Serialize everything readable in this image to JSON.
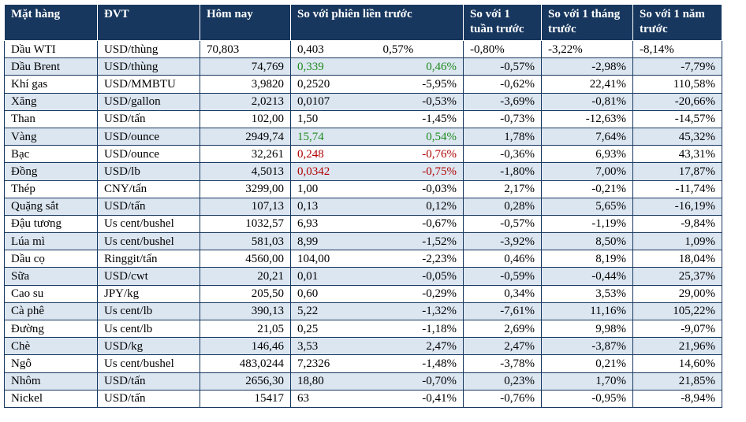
{
  "table": {
    "header": [
      "Mặt hàng",
      "ĐVT",
      "Hôm nay",
      "So với phiên liền trước",
      "So với 1 tuần trước",
      "So với 1 tháng trước",
      "So với 1 năm trước"
    ],
    "rows": [
      {
        "cells": [
          "Dầu WTI",
          "USD/thùng",
          "70,803",
          "0,403",
          "0,57%",
          "-0,80%",
          "-3,22%",
          "-8,14%"
        ]
      },
      {
        "cells": [
          "Dầu Brent",
          "USD/thùng",
          "74,769",
          "0,339",
          "0,46%",
          "-0,57%",
          "-2,98%",
          "-7,79%"
        ],
        "change_color": "#1e8a1e"
      },
      {
        "cells": [
          "Khí gas",
          "USD/MMBTU",
          "3,9820",
          "0,2520",
          "-5,95%",
          "-0,62%",
          "22,41%",
          "110,58%"
        ]
      },
      {
        "cells": [
          "Xăng",
          "USD/gallon",
          "2,0213",
          "0,0107",
          "-0,53%",
          "-3,69%",
          "-0,81%",
          "-20,66%"
        ]
      },
      {
        "cells": [
          "Than",
          "USD/tấn",
          "102,00",
          "1,50",
          "-1,45%",
          "-0,73%",
          "-12,63%",
          "-14,57%"
        ]
      },
      {
        "cells": [
          "Vàng",
          "USD/ounce",
          "2949,74",
          "15,74",
          "0,54%",
          "1,78%",
          "7,64%",
          "45,32%"
        ],
        "change_color": "#1e8a1e"
      },
      {
        "cells": [
          "Bạc",
          "USD/ounce",
          "32,261",
          "0,248",
          "-0,76%",
          "-0,36%",
          "6,93%",
          "43,31%"
        ],
        "change_color": "#b00000"
      },
      {
        "cells": [
          "Đồng",
          "USD/lb",
          "4,5013",
          "0,0342",
          "-0,75%",
          "-1,80%",
          "7,00%",
          "17,87%"
        ],
        "change_color": "#b00000"
      },
      {
        "cells": [
          "Thép",
          "CNY/tấn",
          "3299,00",
          "1,00",
          "-0,03%",
          "2,17%",
          "-0,21%",
          "-11,74%"
        ]
      },
      {
        "cells": [
          "Quặng sắt",
          "USD/tấn",
          "107,13",
          "0,13",
          "0,12%",
          "0,28%",
          "5,65%",
          "-16,19%"
        ]
      },
      {
        "cells": [
          "Đậu tương",
          "Us cent/bushel",
          "1032,57",
          "6,93",
          "-0,67%",
          "-0,57%",
          "-1,19%",
          "-9,84%"
        ]
      },
      {
        "cells": [
          "Lúa mì",
          "Us cent/bushel",
          "581,03",
          "8,99",
          "-1,52%",
          "-3,92%",
          "8,50%",
          "1,09%"
        ]
      },
      {
        "cells": [
          "Dầu cọ",
          "Ringgit/tấn",
          "4560,00",
          "104,00",
          "-2,23%",
          "0,46%",
          "8,19%",
          "18,04%"
        ]
      },
      {
        "cells": [
          "Sữa",
          "USD/cwt",
          "20,21",
          "0,01",
          "-0,05%",
          "-0,59%",
          "-0,44%",
          "25,37%"
        ]
      },
      {
        "cells": [
          "Cao su",
          "JPY/kg",
          "205,50",
          "0,60",
          "-0,29%",
          "0,34%",
          "3,53%",
          "29,00%"
        ]
      },
      {
        "cells": [
          "Cà phê",
          "Us cent/lb",
          "390,13",
          "5,22",
          "-1,32%",
          "-7,61%",
          "11,16%",
          "105,22%"
        ]
      },
      {
        "cells": [
          "Đường",
          "Us cent/lb",
          "21,05",
          "0,25",
          "-1,18%",
          "2,69%",
          "9,98%",
          "-9,07%"
        ]
      },
      {
        "cells": [
          "Chè",
          "USD/kg",
          "146,46",
          "3,53",
          "2,47%",
          "2,47%",
          "-3,87%",
          "21,96%"
        ]
      },
      {
        "cells": [
          "Ngô",
          "Us cent/bushel",
          "483,0244",
          "7,2326",
          "-1,48%",
          "-3,78%",
          "0,21%",
          "14,60%"
        ]
      },
      {
        "cells": [
          "Nhôm",
          "USD/tấn",
          "2656,30",
          "18,80",
          "-0,70%",
          "0,23%",
          "1,70%",
          "21,85%"
        ]
      },
      {
        "cells": [
          "Nickel",
          "USD/tấn",
          "15417",
          "63",
          "-0,41%",
          "-0,76%",
          "-0,95%",
          "-8,94%"
        ]
      }
    ]
  }
}
